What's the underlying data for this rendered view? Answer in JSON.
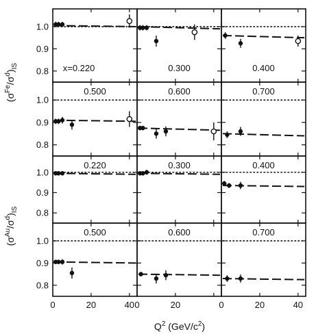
{
  "colors": {
    "ink": "#111111",
    "background": "#ffffff"
  },
  "chart_data": {
    "type": "scatter",
    "grid": false,
    "xlabel": {
      "base": "Q",
      "sup": "2",
      "rest": "  (GeV/c",
      "sup2": "2",
      "end": ")"
    },
    "xlim": [
      0,
      44
    ],
    "xticks": [
      "0",
      "20",
      "40",
      "0",
      "20",
      "0",
      "20",
      "40"
    ],
    "ylim": [
      0.75,
      1.08
    ],
    "yticks": [
      "0.8",
      "0.9",
      "1.0"
    ],
    "rows": [
      {
        "ylabel": {
          "open": "(σ",
          "sup": "Fe",
          "mid": "/σ",
          "sup2": "d",
          "close": ")",
          "sub": "IS"
        },
        "panels": [
          {
            "label": "x=0.220",
            "label_pos": "bottom",
            "fit": [
              1.005,
              1.0
            ],
            "filled": [
              {
                "x": 1.5,
                "y": 1.01,
                "e": 0.012
              },
              {
                "x": 3,
                "y": 1.01,
                "e": 0.012
              },
              {
                "x": 5,
                "y": 1.01,
                "e": 0.012
              }
            ],
            "open": [
              {
                "x": 40,
                "y": 1.025,
                "e": 0.03
              }
            ]
          },
          {
            "label": "0.300",
            "label_pos": "bottom",
            "fit": [
              1.0,
              0.99
            ],
            "filled": [
              {
                "x": 1.5,
                "y": 0.995,
                "e": 0.012
              },
              {
                "x": 3,
                "y": 0.995,
                "e": 0.012
              },
              {
                "x": 5,
                "y": 0.995,
                "e": 0.012
              },
              {
                "x": 10,
                "y": 0.935,
                "e": 0.025
              }
            ],
            "open": [
              {
                "x": 30,
                "y": 0.975,
                "e": 0.035
              }
            ]
          },
          {
            "label": "0.400",
            "label_pos": "bottom",
            "fit": [
              0.96,
              0.95
            ],
            "filled": [
              {
                "x": 2,
                "y": 0.96,
                "e": 0.015
              },
              {
                "x": 10,
                "y": 0.925,
                "e": 0.02
              }
            ],
            "open": [
              {
                "x": 40,
                "y": 0.935,
                "e": 0.025
              }
            ]
          }
        ]
      },
      {
        "ylabel": null,
        "panels": [
          {
            "label": "0.500",
            "label_pos": "top",
            "fit": [
              0.91,
              0.905
            ],
            "filled": [
              {
                "x": 1.5,
                "y": 0.905,
                "e": 0.012
              },
              {
                "x": 3,
                "y": 0.905,
                "e": 0.012
              },
              {
                "x": 5,
                "y": 0.91,
                "e": 0.015
              },
              {
                "x": 10,
                "y": 0.89,
                "e": 0.022
              }
            ],
            "open": [
              {
                "x": 40,
                "y": 0.915,
                "e": 0.035
              }
            ]
          },
          {
            "label": "0.600",
            "label_pos": "top",
            "fit": [
              0.875,
              0.865
            ],
            "filled": [
              {
                "x": 1.5,
                "y": 0.875,
                "e": 0.01
              },
              {
                "x": 3,
                "y": 0.875,
                "e": 0.01
              },
              {
                "x": 10,
                "y": 0.85,
                "e": 0.022
              },
              {
                "x": 15,
                "y": 0.86,
                "e": 0.022
              }
            ],
            "open": [
              {
                "x": 40,
                "y": 0.86,
                "e": 0.04
              }
            ]
          },
          {
            "label": "0.700",
            "label_pos": "top",
            "fit": [
              0.85,
              0.84
            ],
            "filled": [
              {
                "x": 3,
                "y": 0.845,
                "e": 0.015
              },
              {
                "x": 10,
                "y": 0.86,
                "e": 0.02
              }
            ],
            "open": []
          }
        ]
      },
      {
        "ylabel": {
          "open": "(σ",
          "sup": "Au",
          "mid": "/σ",
          "sup2": "d",
          "close": ")",
          "sub": "IS"
        },
        "panels": [
          {
            "label": "0.220",
            "label_pos": "top",
            "fit": [
              0.995,
              0.99
            ],
            "filled": [
              {
                "x": 1.5,
                "y": 0.995,
                "e": 0.01
              },
              {
                "x": 3,
                "y": 0.995,
                "e": 0.01
              },
              {
                "x": 5,
                "y": 0.995,
                "e": 0.01
              }
            ],
            "open": []
          },
          {
            "label": "0.300",
            "label_pos": "top",
            "fit": [
              0.995,
              0.99
            ],
            "filled": [
              {
                "x": 1.5,
                "y": 0.995,
                "e": 0.01
              },
              {
                "x": 3,
                "y": 0.995,
                "e": 0.01
              },
              {
                "x": 5,
                "y": 1.0,
                "e": 0.012
              }
            ],
            "open": []
          },
          {
            "label": "0.400",
            "label_pos": "top",
            "fit": [
              0.935,
              0.93
            ],
            "filled": [
              {
                "x": 1.5,
                "y": 0.945,
                "e": 0.012
              },
              {
                "x": 4,
                "y": 0.935,
                "e": 0.012
              },
              {
                "x": 10,
                "y": 0.935,
                "e": 0.018
              }
            ],
            "open": []
          }
        ]
      },
      {
        "ylabel": null,
        "panels": [
          {
            "label": "0.500",
            "label_pos": "top",
            "fit": [
              0.905,
              0.9
            ],
            "filled": [
              {
                "x": 1.5,
                "y": 0.905,
                "e": 0.01
              },
              {
                "x": 3,
                "y": 0.905,
                "e": 0.01
              },
              {
                "x": 5,
                "y": 0.905,
                "e": 0.012
              },
              {
                "x": 10,
                "y": 0.855,
                "e": 0.025
              }
            ],
            "open": []
          },
          {
            "label": "0.600",
            "label_pos": "top",
            "fit": [
              0.85,
              0.845
            ],
            "filled": [
              {
                "x": 2,
                "y": 0.85,
                "e": 0.01
              },
              {
                "x": 10,
                "y": 0.83,
                "e": 0.022
              },
              {
                "x": 15,
                "y": 0.845,
                "e": 0.022
              }
            ],
            "open": []
          },
          {
            "label": "0.700",
            "label_pos": "top",
            "fit": [
              0.83,
              0.825
            ],
            "filled": [
              {
                "x": 3,
                "y": 0.83,
                "e": 0.015
              },
              {
                "x": 10,
                "y": 0.83,
                "e": 0.018
              }
            ],
            "open": []
          }
        ]
      }
    ],
    "reference_line": 1.0
  }
}
